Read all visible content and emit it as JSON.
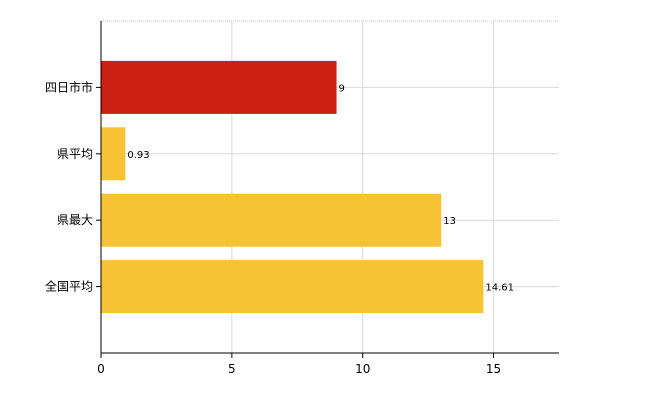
{
  "chart_data": {
    "type": "bar",
    "orientation": "horizontal",
    "categories": [
      "四日市市",
      "県平均",
      "県最大",
      "全国平均"
    ],
    "values": [
      9,
      0.93,
      13,
      14.61
    ],
    "value_labels": [
      "9",
      "0.93",
      "13",
      "14.61"
    ],
    "bar_colors": [
      "#cc2014",
      "#f8c235",
      "#f8c235",
      "#f8c235"
    ],
    "xlim": [
      0,
      17.5
    ],
    "x_ticks": [
      "0",
      "5",
      "10",
      "15"
    ],
    "grid": true
  }
}
